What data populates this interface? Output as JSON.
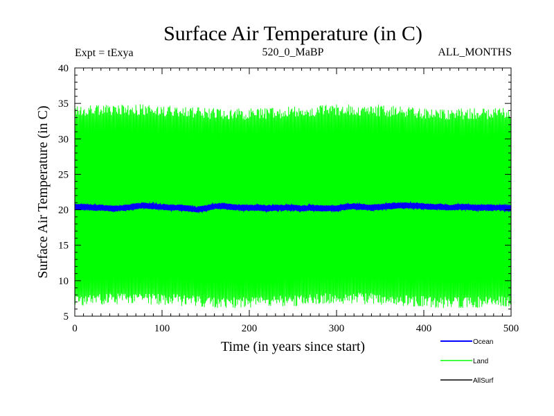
{
  "chart_data": {
    "type": "line",
    "title": "Surface Air Temperature (in C)",
    "subtitle_left": "Expt = tExya",
    "subtitle_center": "520_0_MaBP",
    "subtitle_right": "ALL_MONTHS",
    "xlabel": "Time (in years since start)",
    "ylabel": "Surface Air Temperature (in C)",
    "xlim": [
      0,
      500
    ],
    "ylim": [
      5,
      40
    ],
    "xticks": [
      0,
      100,
      200,
      300,
      400,
      500
    ],
    "yticks": [
      5,
      10,
      15,
      20,
      25,
      30,
      35,
      40
    ],
    "legend_position": "bottom-right",
    "series": [
      {
        "name": "Land",
        "color": "#00ff00",
        "description_values": "monthly values oscillating between ~8 and ~35",
        "envelope": {
          "low": 8.2,
          "high": 34.8
        },
        "mean": 20.5
      },
      {
        "name": "Ocean",
        "color": "#0000ff",
        "x": [
          0,
          10,
          20,
          30,
          40,
          50,
          60,
          70,
          80,
          90,
          100,
          110,
          120,
          130,
          140,
          150,
          160,
          170,
          180,
          190,
          200,
          210,
          220,
          230,
          240,
          250,
          260,
          270,
          280,
          290,
          300,
          310,
          320,
          330,
          340,
          350,
          360,
          370,
          380,
          390,
          400,
          410,
          420,
          430,
          440,
          450,
          460,
          470,
          480,
          490,
          500
        ],
        "values": [
          20.4,
          20.4,
          20.3,
          20.3,
          20.2,
          20.2,
          20.3,
          20.5,
          20.6,
          20.5,
          20.4,
          20.3,
          20.3,
          20.2,
          20.0,
          20.2,
          20.5,
          20.5,
          20.4,
          20.3,
          20.3,
          20.3,
          20.2,
          20.3,
          20.3,
          20.3,
          20.2,
          20.3,
          20.2,
          20.2,
          20.2,
          20.4,
          20.5,
          20.4,
          20.3,
          20.4,
          20.5,
          20.6,
          20.6,
          20.6,
          20.5,
          20.4,
          20.4,
          20.3,
          20.4,
          20.4,
          20.3,
          20.3,
          20.3,
          20.3,
          20.2
        ]
      },
      {
        "name": "AllSurf",
        "color": "#000000",
        "values": []
      }
    ]
  }
}
